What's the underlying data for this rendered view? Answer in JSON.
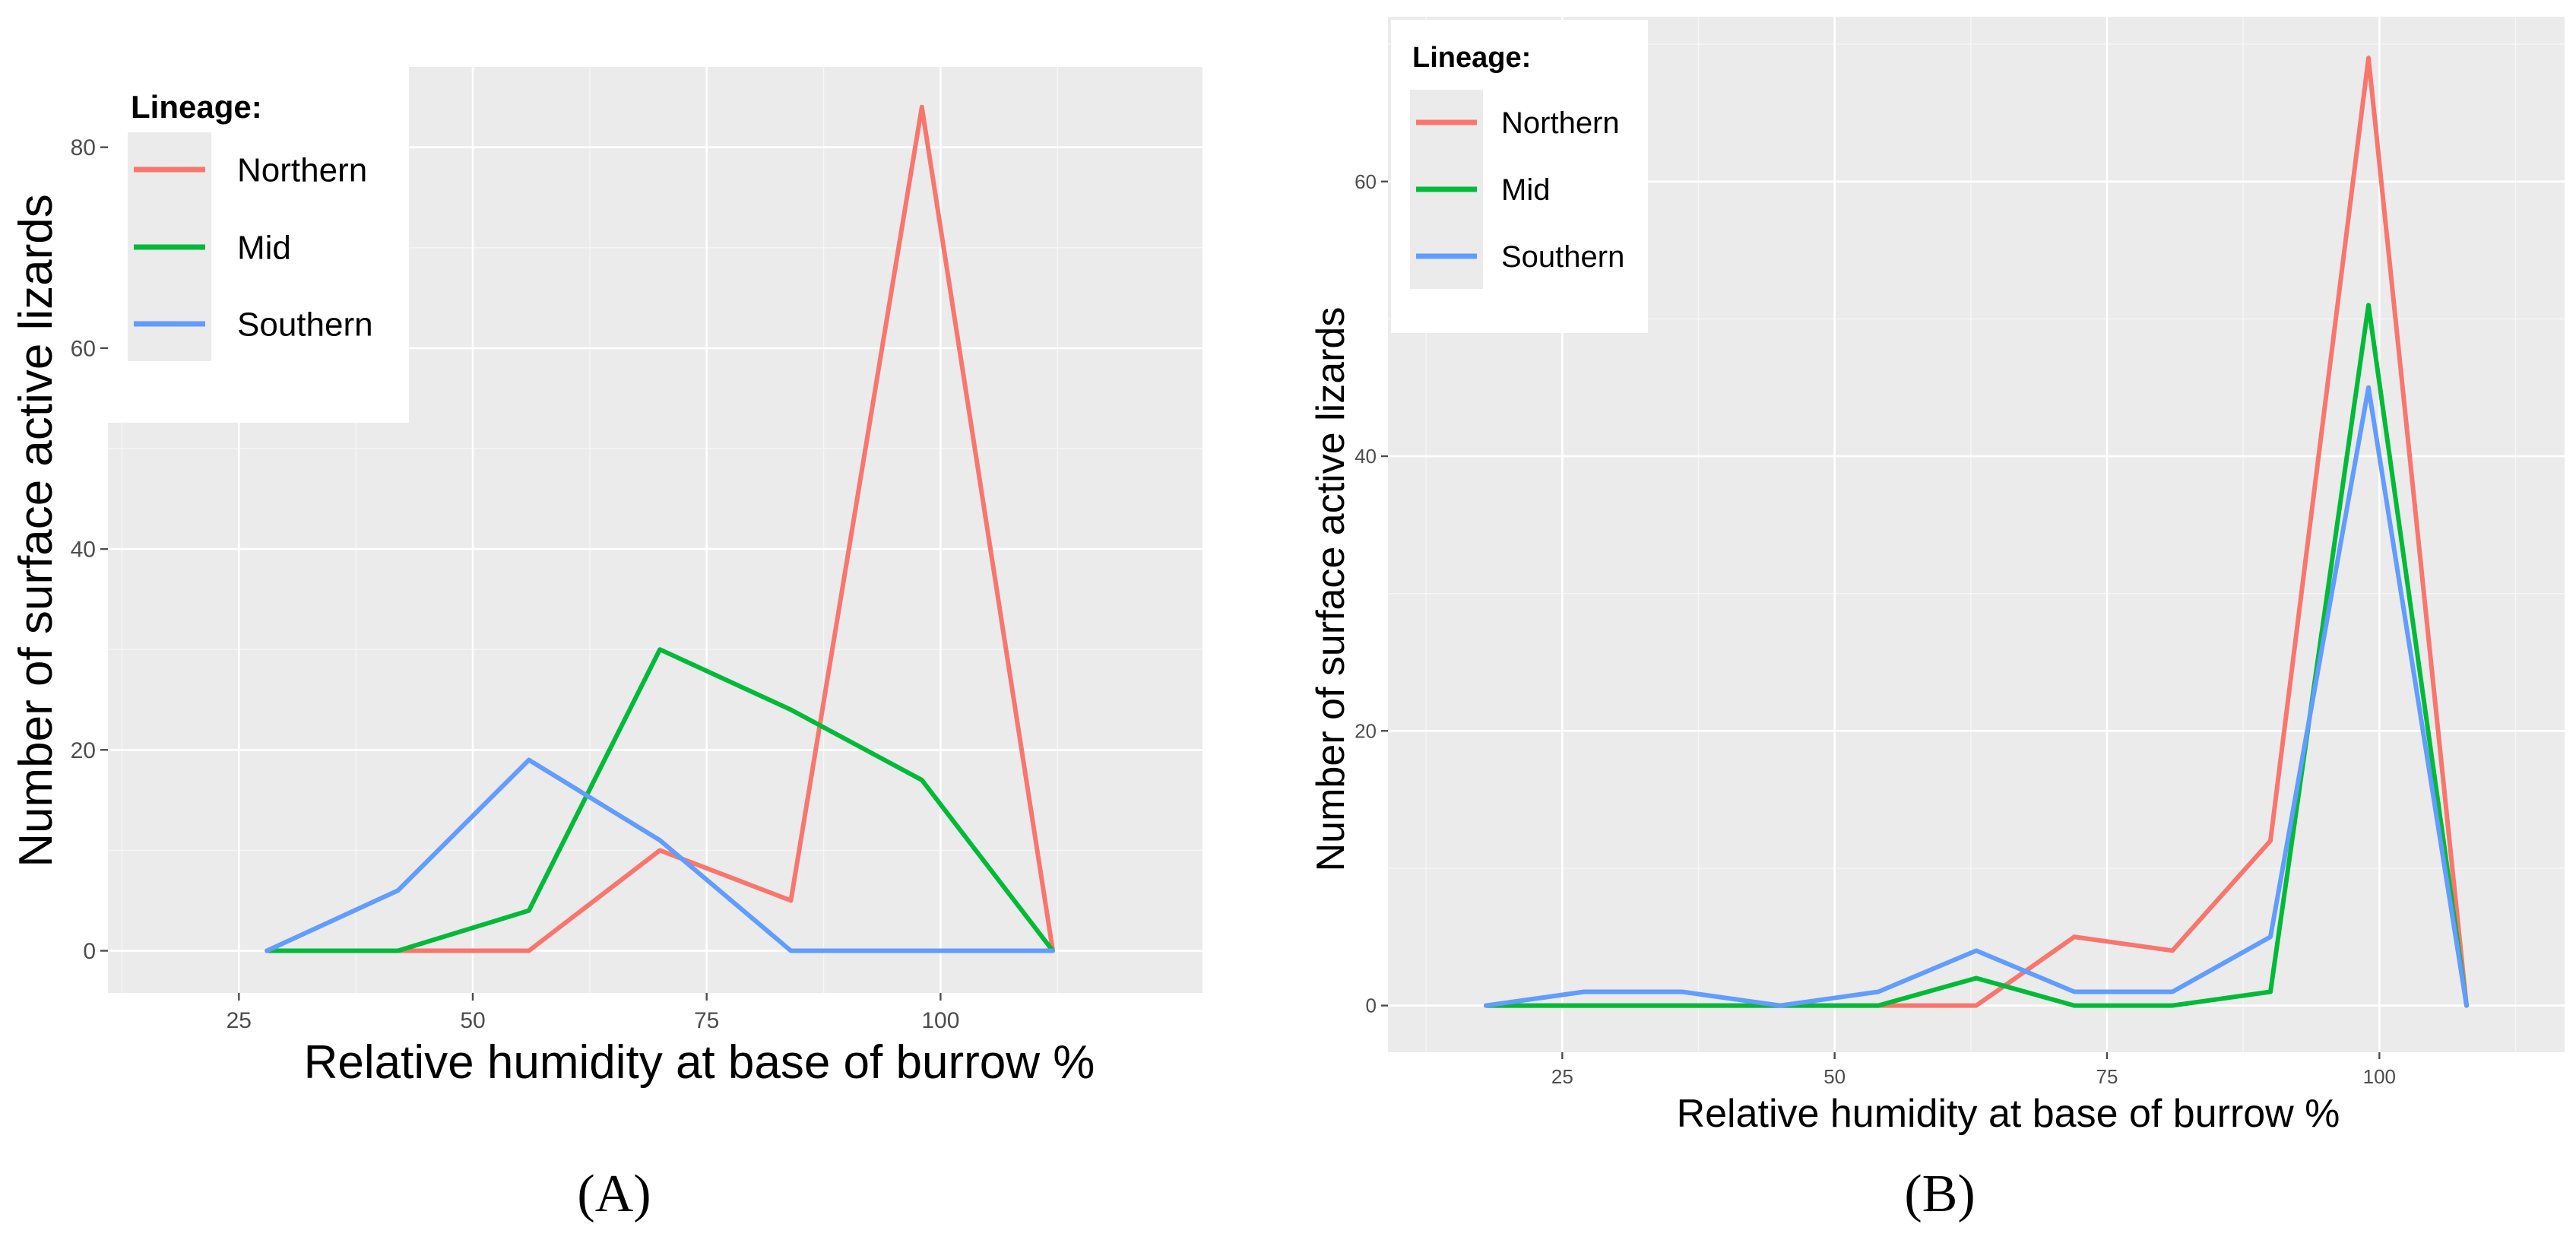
{
  "chart_data": [
    {
      "type": "line",
      "panel_label": "A",
      "panel_label_text": "(A)",
      "xlabel": "Relative humidity at base of burrow %",
      "ylabel": "Number of surface active lizards",
      "xlim": [
        11,
        128
      ],
      "ylim": [
        -4.2,
        88
      ],
      "x_ticks": [
        25,
        50,
        75,
        100
      ],
      "x_tick_labels": [
        "25",
        "50",
        "75",
        "100"
      ],
      "y_ticks": [
        0,
        20,
        40,
        60,
        80
      ],
      "y_tick_labels": [
        "0",
        "20",
        "40",
        "60",
        "80"
      ],
      "legend": {
        "title": "Lineage:",
        "placement": "top-left",
        "entries": [
          "Northern",
          "Mid",
          "Southern"
        ]
      },
      "series": [
        {
          "name": "Northern",
          "color": "#f8766d",
          "x": [
            28,
            42,
            56,
            70,
            84,
            98,
            112
          ],
          "values": [
            0,
            0,
            0,
            10,
            5,
            84,
            0
          ]
        },
        {
          "name": "Mid",
          "color": "#00ba38",
          "x": [
            28,
            42,
            56,
            70,
            84,
            98,
            112
          ],
          "values": [
            0,
            0,
            4,
            30,
            24,
            17,
            0
          ]
        },
        {
          "name": "Southern",
          "color": "#619cff",
          "x": [
            28,
            42,
            56,
            70,
            84,
            98,
            112
          ],
          "values": [
            0,
            6,
            19,
            11,
            0,
            0,
            0
          ]
        }
      ]
    },
    {
      "type": "line",
      "panel_label": "B",
      "panel_label_text": "(B)",
      "xlabel": "Relative humidity at base of burrow %",
      "ylabel": "Number of surface active lizards",
      "xlim": [
        9,
        117
      ],
      "ylim": [
        -3.4,
        72
      ],
      "x_ticks": [
        25,
        50,
        75,
        100
      ],
      "x_tick_labels": [
        "25",
        "50",
        "75",
        "100"
      ],
      "y_ticks": [
        0,
        20,
        40,
        60
      ],
      "y_tick_labels": [
        "0",
        "20",
        "40",
        "60"
      ],
      "legend": {
        "title": "Lineage:",
        "placement": "top-left",
        "entries": [
          "Northern",
          "Mid",
          "Southern"
        ]
      },
      "series": [
        {
          "name": "Northern",
          "color": "#f8766d",
          "x": [
            18,
            27,
            36,
            45,
            54,
            63,
            72,
            81,
            90,
            99,
            108
          ],
          "values": [
            0,
            0,
            0,
            0,
            0,
            0,
            5,
            4,
            12,
            69,
            0
          ]
        },
        {
          "name": "Mid",
          "color": "#00ba38",
          "x": [
            18,
            27,
            36,
            45,
            54,
            63,
            72,
            81,
            90,
            99,
            108
          ],
          "values": [
            0,
            0,
            0,
            0,
            0,
            2,
            0,
            0,
            1,
            51,
            0
          ]
        },
        {
          "name": "Southern",
          "color": "#619cff",
          "x": [
            18,
            27,
            36,
            45,
            54,
            63,
            72,
            81,
            90,
            99,
            108
          ],
          "values": [
            0,
            1,
            1,
            0,
            1,
            4,
            1,
            1,
            5,
            45,
            0
          ]
        }
      ]
    }
  ]
}
